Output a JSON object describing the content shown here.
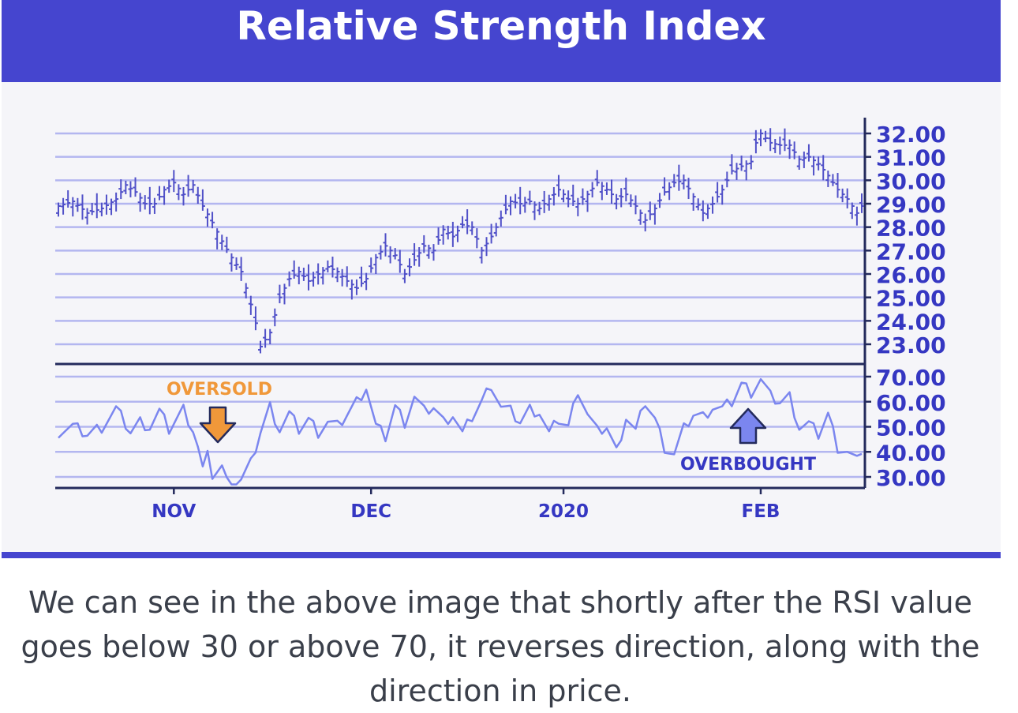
{
  "header": {
    "title": "Relative Strength Index"
  },
  "caption": {
    "lines": [
      "We can see in the above image that shortly after the RSI value",
      "goes below 30 or above 70, it reverses direction, along with the",
      "direction in price."
    ]
  },
  "colors": {
    "header": "#4545cf",
    "grid": "#b3b6f0",
    "price": "#5050c8",
    "rsi": "#7b86ef",
    "axis": "#232a5c",
    "label": "#3537c2",
    "oversold": "#f0983a",
    "overbought": "#3537c2",
    "arrow_up": "#7b86ef"
  },
  "chart_data": [
    {
      "type": "ohlc",
      "panel": "price",
      "yticks": [
        "32.00",
        "31.00",
        "30.00",
        "29.00",
        "28.00",
        "27.00",
        "26.00",
        "25.00",
        "24.00",
        "23.00"
      ],
      "ylim": [
        23,
        32
      ],
      "grid": true,
      "series_points": [
        [
          0,
          28.9
        ],
        [
          3,
          29.1
        ],
        [
          6,
          28.6
        ],
        [
          9,
          28.8
        ],
        [
          12,
          29.2
        ],
        [
          14,
          29.8
        ],
        [
          16,
          29.5
        ],
        [
          18,
          29.0
        ],
        [
          20,
          29.0
        ],
        [
          22,
          29.6
        ],
        [
          24,
          29.9
        ],
        [
          26,
          29.4
        ],
        [
          28,
          29.8
        ],
        [
          30,
          28.9
        ],
        [
          32,
          28.2
        ],
        [
          34,
          27.4
        ],
        [
          36,
          26.7
        ],
        [
          38,
          26.1
        ],
        [
          40,
          24.7
        ],
        [
          41,
          23.9
        ],
        [
          42,
          22.9
        ],
        [
          44,
          23.5
        ],
        [
          46,
          25.0
        ],
        [
          48,
          25.8
        ],
        [
          50,
          26.1
        ],
        [
          52,
          25.7
        ],
        [
          54,
          26.0
        ],
        [
          56,
          26.3
        ],
        [
          58,
          26.1
        ],
        [
          60,
          25.7
        ],
        [
          62,
          25.4
        ],
        [
          64,
          25.8
        ],
        [
          66,
          26.7
        ],
        [
          68,
          27.2
        ],
        [
          70,
          26.8
        ],
        [
          72,
          26.0
        ],
        [
          74,
          26.6
        ],
        [
          76,
          27.2
        ],
        [
          78,
          27.0
        ],
        [
          80,
          27.9
        ],
        [
          82,
          27.6
        ],
        [
          84,
          28.1
        ],
        [
          86,
          28.0
        ],
        [
          88,
          27.0
        ],
        [
          90,
          27.6
        ],
        [
          92,
          28.4
        ],
        [
          94,
          29.1
        ],
        [
          96,
          29.0
        ],
        [
          98,
          29.1
        ],
        [
          100,
          28.8
        ],
        [
          102,
          29.2
        ],
        [
          104,
          29.6
        ],
        [
          106,
          29.2
        ],
        [
          108,
          29.0
        ],
        [
          110,
          29.4
        ],
        [
          112,
          29.9
        ],
        [
          114,
          29.6
        ],
        [
          116,
          29.2
        ],
        [
          118,
          29.4
        ],
        [
          120,
          28.9
        ],
        [
          122,
          28.3
        ],
        [
          124,
          28.8
        ],
        [
          126,
          29.5
        ],
        [
          128,
          29.9
        ],
        [
          130,
          30.0
        ],
        [
          132,
          29.3
        ],
        [
          134,
          28.6
        ],
        [
          136,
          29.0
        ],
        [
          138,
          29.6
        ],
        [
          140,
          30.4
        ],
        [
          142,
          30.6
        ],
        [
          144,
          30.8
        ],
        [
          145,
          31.6
        ],
        [
          146,
          32.0
        ],
        [
          148,
          31.6
        ],
        [
          150,
          31.5
        ],
        [
          152,
          31.5
        ],
        [
          154,
          30.9
        ],
        [
          156,
          31.0
        ],
        [
          158,
          30.7
        ],
        [
          160,
          30.2
        ],
        [
          162,
          29.6
        ],
        [
          164,
          29.2
        ],
        [
          166,
          28.6
        ],
        [
          167,
          28.9
        ]
      ],
      "x_count": 168
    },
    {
      "type": "line",
      "panel": "rsi",
      "yticks": [
        "70.00",
        "60.00",
        "50.00",
        "40.00",
        "30.00"
      ],
      "ylim": [
        30,
        70
      ],
      "grid": true,
      "x_labels": [
        {
          "label": "NOV",
          "x": 24
        },
        {
          "label": "DEC",
          "x": 65
        },
        {
          "label": "2020",
          "x": 105
        },
        {
          "label": "FEB",
          "x": 146
        }
      ],
      "series_points": [
        [
          0,
          48
        ],
        [
          3,
          50
        ],
        [
          6,
          47
        ],
        [
          9,
          50
        ],
        [
          12,
          57
        ],
        [
          15,
          48
        ],
        [
          17,
          52
        ],
        [
          19,
          50
        ],
        [
          21,
          56
        ],
        [
          23,
          49
        ],
        [
          26,
          57
        ],
        [
          28,
          49
        ],
        [
          29,
          42
        ],
        [
          30,
          33
        ],
        [
          31,
          38
        ],
        [
          32,
          31
        ],
        [
          34,
          34
        ],
        [
          35,
          28
        ],
        [
          37,
          27
        ],
        [
          38,
          29
        ],
        [
          40,
          35
        ],
        [
          42,
          48
        ],
        [
          44,
          58
        ],
        [
          46,
          49
        ],
        [
          48,
          55
        ],
        [
          50,
          49
        ],
        [
          52,
          53
        ],
        [
          54,
          48
        ],
        [
          56,
          52
        ],
        [
          58,
          50
        ],
        [
          60,
          55
        ],
        [
          62,
          60
        ],
        [
          64,
          66
        ],
        [
          66,
          50
        ],
        [
          68,
          46
        ],
        [
          70,
          58
        ],
        [
          72,
          52
        ],
        [
          74,
          62
        ],
        [
          76,
          56
        ],
        [
          78,
          58
        ],
        [
          80,
          52
        ],
        [
          82,
          55
        ],
        [
          84,
          47
        ],
        [
          86,
          54
        ],
        [
          88,
          60
        ],
        [
          90,
          67
        ],
        [
          92,
          58
        ],
        [
          94,
          56
        ],
        [
          96,
          52
        ],
        [
          98,
          57
        ],
        [
          100,
          56
        ],
        [
          102,
          47
        ],
        [
          104,
          53
        ],
        [
          106,
          50
        ],
        [
          108,
          65
        ],
        [
          110,
          55
        ],
        [
          112,
          48
        ],
        [
          114,
          50
        ],
        [
          116,
          40
        ],
        [
          118,
          54
        ],
        [
          120,
          48
        ],
        [
          122,
          60
        ],
        [
          124,
          53
        ],
        [
          126,
          42
        ],
        [
          128,
          39
        ],
        [
          130,
          49
        ],
        [
          132,
          55
        ],
        [
          134,
          54
        ],
        [
          136,
          58
        ],
        [
          138,
          57
        ],
        [
          140,
          60
        ],
        [
          142,
          67
        ],
        [
          144,
          64
        ],
        [
          146,
          69
        ],
        [
          148,
          62
        ],
        [
          150,
          60
        ],
        [
          152,
          62
        ],
        [
          154,
          50
        ],
        [
          156,
          51
        ],
        [
          158,
          47
        ],
        [
          160,
          55
        ],
        [
          162,
          42
        ],
        [
          164,
          40
        ],
        [
          166,
          36
        ],
        [
          167,
          41
        ]
      ],
      "x_count": 168,
      "annotations": [
        {
          "text": "OVERSOLD",
          "color": "#f0983a"
        },
        {
          "text": "OVERBOUGHT",
          "color": "#3537c2"
        }
      ]
    }
  ]
}
